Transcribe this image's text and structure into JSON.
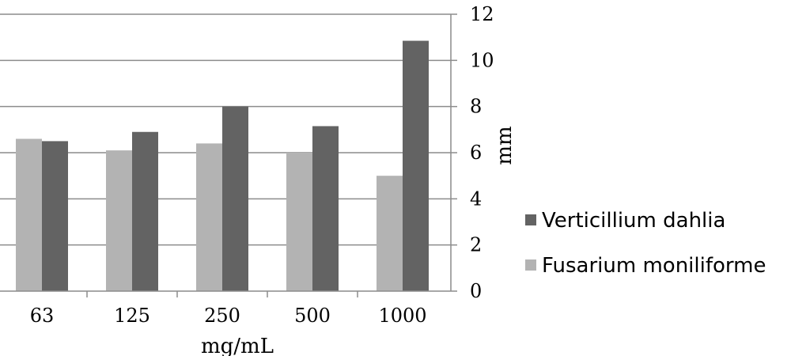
{
  "chart_data": {
    "type": "bar",
    "categories": [
      "63",
      "125",
      "250",
      "500",
      "1000"
    ],
    "series": [
      {
        "name": "Fusarium moniliforme",
        "values": [
          6.6,
          6.1,
          6.4,
          6.0,
          5.0
        ],
        "color": "#b3b3b3"
      },
      {
        "name": "Verticillium dahlia",
        "values": [
          6.5,
          6.9,
          8.0,
          7.15,
          10.85
        ],
        "color": "#636363"
      }
    ],
    "title": "",
    "xlabel": "mg/mL",
    "ylabel": "mm",
    "ylim": [
      0,
      12
    ],
    "yticks": [
      "0",
      "2",
      "4",
      "6",
      "8",
      "10",
      "12"
    ],
    "grid": true,
    "y_axis_side": "right",
    "legend_position": "right",
    "legend_order": [
      "Verticillium dahlia",
      "Fusarium moniliforme"
    ]
  }
}
